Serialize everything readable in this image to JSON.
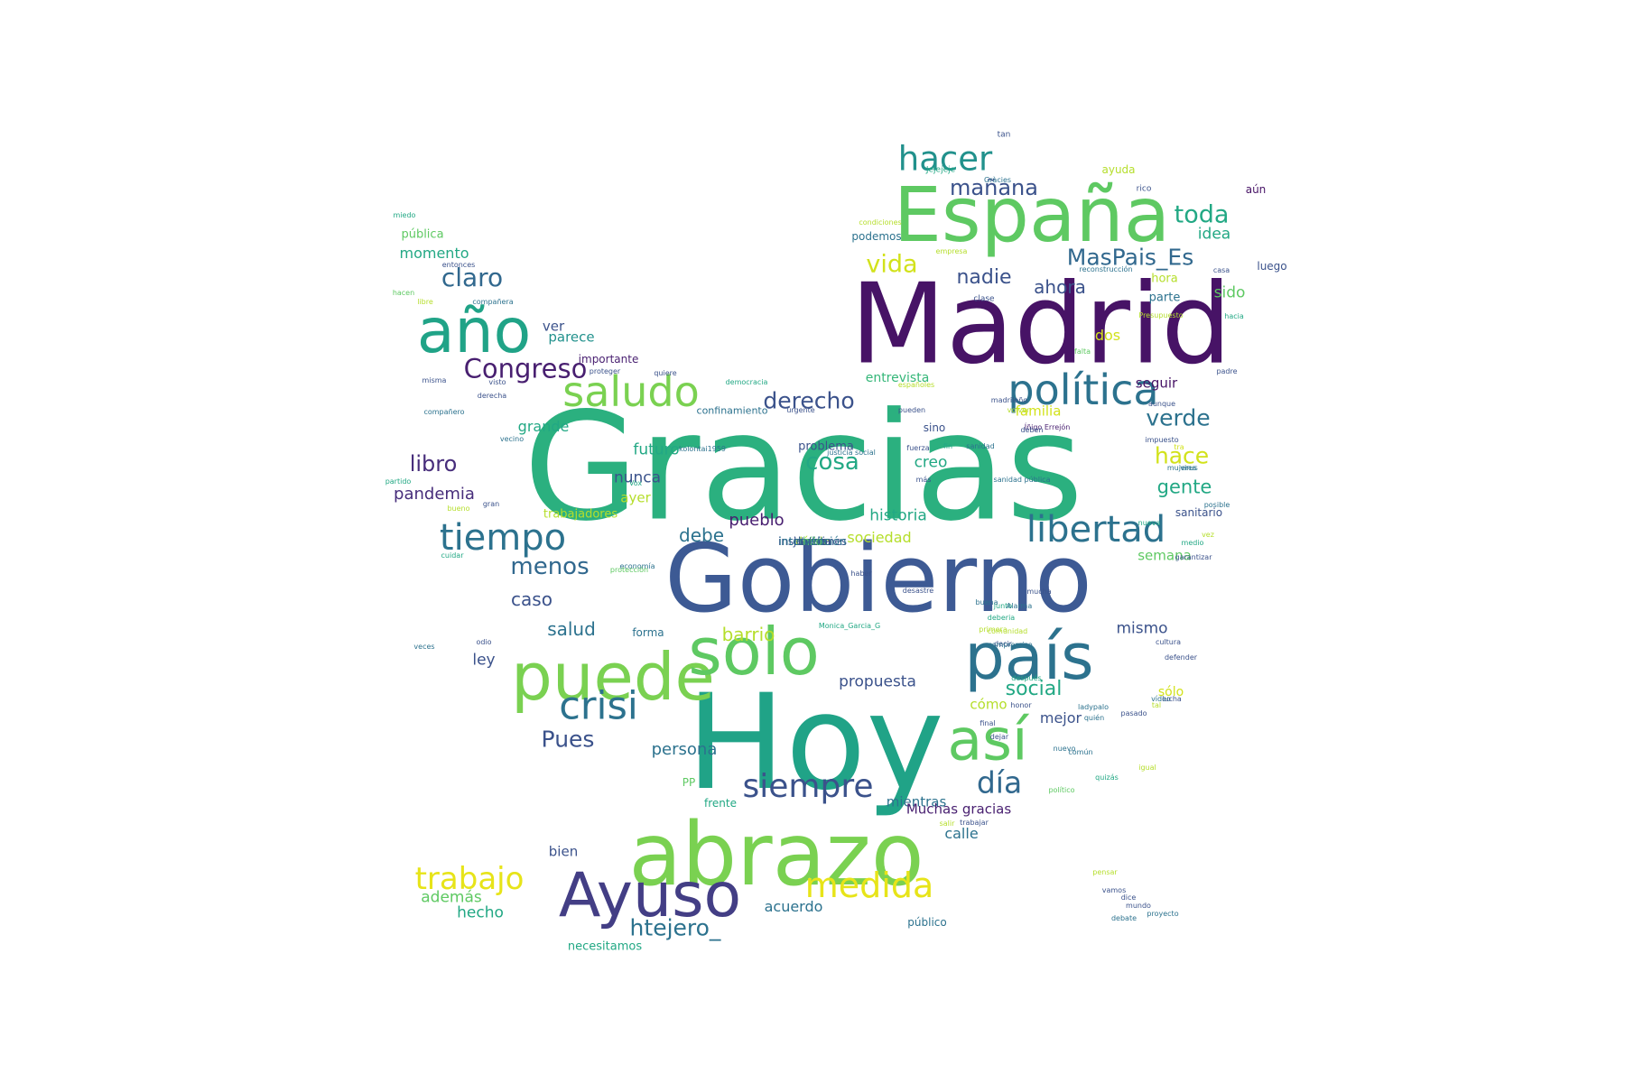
{
  "words": [
    {
      "text": "Gracias",
      "color": "#2bb07f"
    },
    {
      "text": "Madrid",
      "color": "#471366"
    },
    {
      "text": "Gobierno",
      "color": "#3d5a94"
    },
    {
      "text": "Hoy",
      "color": "#20a387"
    },
    {
      "text": "España",
      "color": "#5ec962"
    },
    {
      "text": "abrazo",
      "color": "#7ad151"
    },
    {
      "text": "puede",
      "color": "#7ad151"
    },
    {
      "text": "solo",
      "color": "#5ec962"
    },
    {
      "text": "país",
      "color": "#2c728e"
    },
    {
      "text": "Ayuso",
      "color": "#433e85"
    },
    {
      "text": "año",
      "color": "#20a387"
    },
    {
      "text": "así",
      "color": "#5ec962"
    },
    {
      "text": "política",
      "color": "#2c728e"
    },
    {
      "text": "saludo",
      "color": "#7ad151"
    },
    {
      "text": "libertad",
      "color": "#2c728e"
    },
    {
      "text": "tiempo",
      "color": "#2c728e"
    },
    {
      "text": "crisi",
      "color": "#2c728e"
    },
    {
      "text": "hacer",
      "color": "#21918c"
    },
    {
      "text": "siempre",
      "color": "#3b528b"
    },
    {
      "text": "día",
      "color": "#31688e"
    },
    {
      "text": "medida",
      "color": "#e7e419"
    },
    {
      "text": "trabajo",
      "color": "#e7e419"
    },
    {
      "text": "Congreso",
      "color": "#481f70"
    },
    {
      "text": "claro",
      "color": "#31688e"
    },
    {
      "text": "toda",
      "color": "#22a884"
    },
    {
      "text": "MasPais_Es",
      "color": "#31688e"
    },
    {
      "text": "vida",
      "color": "#d2e21b"
    },
    {
      "text": "mañana",
      "color": "#3b528b"
    },
    {
      "text": "nadie",
      "color": "#3b528b"
    },
    {
      "text": "ahora",
      "color": "#3b528b"
    },
    {
      "text": "derecho",
      "color": "#3b528b"
    },
    {
      "text": "cosa",
      "color": "#22a884"
    },
    {
      "text": "verde",
      "color": "#2c728e"
    },
    {
      "text": "hace",
      "color": "#d2e21b"
    },
    {
      "text": "gente",
      "color": "#22a884"
    },
    {
      "text": "libro",
      "color": "#472d7b"
    },
    {
      "text": "menos",
      "color": "#31688e"
    },
    {
      "text": "Pues",
      "color": "#3b528b"
    },
    {
      "text": "htejero_",
      "color": "#2c728e"
    },
    {
      "text": "idea",
      "color": "#22a884"
    },
    {
      "text": "hora",
      "color": "#b5de2b"
    },
    {
      "text": "sido",
      "color": "#5ec962"
    },
    {
      "text": "parte",
      "color": "#2c728e"
    },
    {
      "text": "dos",
      "color": "#d2e21b"
    },
    {
      "text": "seguir",
      "color": "#471366"
    },
    {
      "text": "familia",
      "color": "#d2e21b"
    },
    {
      "text": "entrevista",
      "color": "#35b779"
    },
    {
      "text": "momento",
      "color": "#22a884"
    },
    {
      "text": "pública",
      "color": "#5ec962"
    },
    {
      "text": "ver",
      "color": "#3b528b"
    },
    {
      "text": "parece",
      "color": "#21918c"
    },
    {
      "text": "importante",
      "color": "#481f70"
    },
    {
      "text": "grande",
      "color": "#22a884"
    },
    {
      "text": "confinamiento",
      "color": "#2c728e"
    },
    {
      "text": "futuro",
      "color": "#22a884"
    },
    {
      "text": "problema",
      "color": "#3b528b"
    },
    {
      "text": "sino",
      "color": "#3b528b"
    },
    {
      "text": "creo",
      "color": "#22a884"
    },
    {
      "text": "nunca",
      "color": "#3b528b"
    },
    {
      "text": "ayer",
      "color": "#b5de2b"
    },
    {
      "text": "pandemia",
      "color": "#472d7b"
    },
    {
      "text": "historia",
      "color": "#22a884"
    },
    {
      "text": "pueblo",
      "color": "#481f70"
    },
    {
      "text": "debe",
      "color": "#2c728e"
    },
    {
      "text": "sociedad",
      "color": "#b5de2b"
    },
    {
      "text": "trabajadores",
      "color": "#b5de2b"
    },
    {
      "text": "caso",
      "color": "#3b528b"
    },
    {
      "text": "salud",
      "color": "#2c728e"
    },
    {
      "text": "barrio",
      "color": "#b5de2b"
    },
    {
      "text": "forma",
      "color": "#2c728e"
    },
    {
      "text": "ley",
      "color": "#3b528b"
    },
    {
      "text": "propuesta",
      "color": "#3b528b"
    },
    {
      "text": "social",
      "color": "#22a884"
    },
    {
      "text": "mismo",
      "color": "#3b528b"
    },
    {
      "text": "sólo",
      "color": "#d2e21b"
    },
    {
      "text": "mejor",
      "color": "#3b528b"
    },
    {
      "text": "cómo",
      "color": "#b5de2b"
    },
    {
      "text": "persona",
      "color": "#2c728e"
    },
    {
      "text": "PP",
      "color": "#5ec962"
    },
    {
      "text": "frente",
      "color": "#22a884"
    },
    {
      "text": "mientras",
      "color": "#2c728e"
    },
    {
      "text": "Muchas gracias",
      "color": "#481f70"
    },
    {
      "text": "calle",
      "color": "#2c728e"
    },
    {
      "text": "bien",
      "color": "#3b528b"
    },
    {
      "text": "además",
      "color": "#5ec962"
    },
    {
      "text": "hecho",
      "color": "#22a884"
    },
    {
      "text": "acuerdo",
      "color": "#2c728e"
    },
    {
      "text": "público",
      "color": "#2c728e"
    },
    {
      "text": "necesitamos",
      "color": "#22a884"
    },
    {
      "text": "sanitario",
      "color": "#3b528b"
    },
    {
      "text": "semana",
      "color": "#5ec962"
    },
    {
      "text": "aún",
      "color": "#471366"
    },
    {
      "text": "luego",
      "color": "#3b528b"
    },
    {
      "text": "ayuda",
      "color": "#b5de2b"
    },
    {
      "text": "podemos",
      "color": "#2c728e"
    },
    {
      "text": "tan",
      "color": "#3b528b"
    },
    {
      "text": "Jejejeje",
      "color": "#22a884"
    },
    {
      "text": "Gràcies",
      "color": "#2c728e"
    },
    {
      "text": "rico",
      "color": "#3b528b"
    },
    {
      "text": "miedo",
      "color": "#22a884"
    },
    {
      "text": "condiciones",
      "color": "#b5de2b"
    },
    {
      "text": "empresa",
      "color": "#b5de2b"
    },
    {
      "text": "entonces",
      "color": "#3b528b"
    },
    {
      "text": "reconstrucción",
      "color": "#2c728e"
    },
    {
      "text": "casa",
      "color": "#3b528b"
    },
    {
      "text": "hacen",
      "color": "#5ec962"
    },
    {
      "text": "libre",
      "color": "#b5de2b"
    },
    {
      "text": "compañera",
      "color": "#2c728e"
    },
    {
      "text": "clase",
      "color": "#3b528b"
    },
    {
      "text": "Presupuesto",
      "color": "#b5de2b"
    },
    {
      "text": "hacia",
      "color": "#22a884"
    },
    {
      "text": "falta",
      "color": "#5ec962"
    },
    {
      "text": "proteger",
      "color": "#3b528b"
    },
    {
      "text": "quiere",
      "color": "#3b528b"
    },
    {
      "text": "democracia",
      "color": "#22a884"
    },
    {
      "text": "padre",
      "color": "#3b528b"
    },
    {
      "text": "misma",
      "color": "#3b528b"
    },
    {
      "text": "derecha",
      "color": "#3b528b"
    },
    {
      "text": "visto",
      "color": "#3b528b"
    },
    {
      "text": "españoles",
      "color": "#b5de2b"
    },
    {
      "text": "pueden",
      "color": "#3b528b"
    },
    {
      "text": "madrileño",
      "color": "#3b528b"
    },
    {
      "text": "compañero",
      "color": "#2c728e"
    },
    {
      "text": "urgente",
      "color": "#3b528b"
    },
    {
      "text": "volver",
      "color": "#b5de2b"
    },
    {
      "text": "aunque",
      "color": "#3b528b"
    },
    {
      "text": "Íñigo Errejón",
      "color": "#481f70"
    },
    {
      "text": "deben",
      "color": "#3b528b"
    },
    {
      "text": "impuesto",
      "color": "#3b528b"
    },
    {
      "text": "tra",
      "color": "#d2e21b"
    },
    {
      "text": "virus",
      "color": "#2c728e"
    },
    {
      "text": "vecino",
      "color": "#2c728e"
    },
    {
      "text": "kolontai1959",
      "color": "#2c728e"
    },
    {
      "text": "fin",
      "color": "#22a884"
    },
    {
      "text": "fuerza",
      "color": "#3b528b"
    },
    {
      "text": "sanidad",
      "color": "#2c728e"
    },
    {
      "text": "justicia social",
      "color": "#2c728e"
    },
    {
      "text": "sanidad pública",
      "color": "#2c728e"
    },
    {
      "text": "Vox",
      "color": "#22a884"
    },
    {
      "text": "más",
      "color": "#3b528b"
    },
    {
      "text": "mujeres",
      "color": "#2c728e"
    },
    {
      "text": "partido",
      "color": "#22a884"
    },
    {
      "text": "bueno",
      "color": "#b5de2b"
    },
    {
      "text": "gran",
      "color": "#3b528b"
    },
    {
      "text": "posible",
      "color": "#2c728e"
    },
    {
      "text": "vez",
      "color": "#b5de2b"
    },
    {
      "text": "nueva",
      "color": "#22a884"
    },
    {
      "text": "medio",
      "color": "#22a884"
    },
    {
      "text": "cuidar",
      "color": "#22a884"
    },
    {
      "text": "economía",
      "color": "#2c728e"
    },
    {
      "text": "protección",
      "color": "#5ec962"
    },
    {
      "text": "garantizar",
      "color": "#3b528b"
    },
    {
      "text": "haber",
      "color": "#3b528b"
    },
    {
      "text": "desastre",
      "color": "#3b528b"
    },
    {
      "text": "mucha",
      "color": "#3b528b"
    },
    {
      "text": "buena",
      "color": "#2c728e"
    },
    {
      "text": "junto",
      "color": "#22a884"
    },
    {
      "text": "Alarma",
      "color": "#2c728e"
    },
    {
      "text": "deberia",
      "color": "#22a884"
    },
    {
      "text": "comunidad",
      "color": "#b5de2b"
    },
    {
      "text": "decir",
      "color": "#3b528b"
    },
    {
      "text": "primera",
      "color": "#b5de2b"
    },
    {
      "text": "compromiso",
      "color": "#2c728e"
    },
    {
      "text": "odio",
      "color": "#3b528b"
    },
    {
      "text": "Monica_Garcia_G",
      "color": "#22a884"
    },
    {
      "text": "cultura",
      "color": "#3b528b"
    },
    {
      "text": "veces",
      "color": "#2c728e"
    },
    {
      "text": "defender",
      "color": "#3b528b"
    },
    {
      "text": "después",
      "color": "#22a884"
    },
    {
      "text": "vídeo",
      "color": "#2c728e"
    },
    {
      "text": "lucha",
      "color": "#3b528b"
    },
    {
      "text": "tal",
      "color": "#b5de2b"
    },
    {
      "text": "ladypalo",
      "color": "#2c728e"
    },
    {
      "text": "honor",
      "color": "#3b528b"
    },
    {
      "text": "pasado",
      "color": "#3b528b"
    },
    {
      "text": "quién",
      "color": "#2c728e"
    },
    {
      "text": "final",
      "color": "#3b528b"
    },
    {
      "text": "dejar",
      "color": "#3b528b"
    },
    {
      "text": "nuevo",
      "color": "#2c728e"
    },
    {
      "text": "común",
      "color": "#2c728e"
    },
    {
      "text": "igual",
      "color": "#b5de2b"
    },
    {
      "text": "quizás",
      "color": "#22a884"
    },
    {
      "text": "político",
      "color": "#5ec962"
    },
    {
      "text": "salir",
      "color": "#b5de2b"
    },
    {
      "text": "trabajar",
      "color": "#3b528b"
    },
    {
      "text": "pensar",
      "color": "#b5de2b"
    },
    {
      "text": "vamos",
      "color": "#3b528b"
    },
    {
      "text": "dice",
      "color": "#3b528b"
    },
    {
      "text": "mundo",
      "color": "#3b528b"
    },
    {
      "text": "proyecto",
      "color": "#2c728e"
    },
    {
      "text": "debate",
      "color": "#2c728e"
    },
    {
      "text": "dónde",
      "color": "#b5de2b"
    },
    {
      "text": "tener",
      "color": "#5ec962"
    },
    {
      "text": "sabe",
      "color": "#2c728e"
    },
    {
      "text": "tarde",
      "color": "#2c728e"
    },
    {
      "text": "cuenta",
      "color": "#2c728e"
    },
    {
      "text": "justicia",
      "color": "#3b528b"
    },
    {
      "text": "instituciones",
      "color": "#3b528b"
    },
    {
      "text": "hilo",
      "color": "#5ec962"
    },
    {
      "text": "intervención",
      "color": "#2c728e"
    }
  ]
}
